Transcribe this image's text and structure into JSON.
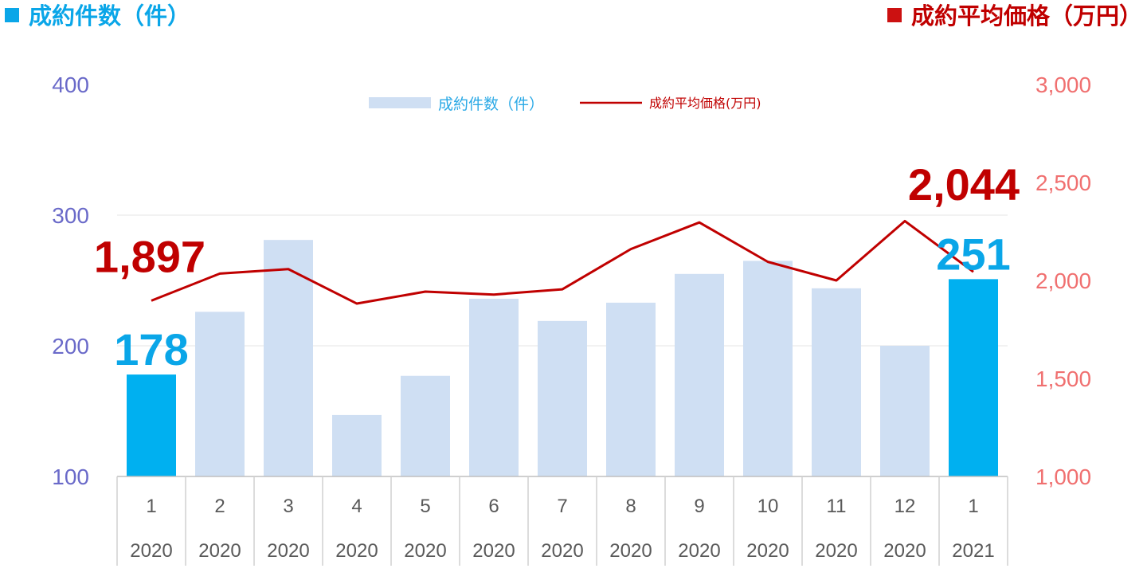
{
  "header": {
    "left_title": "成約件数（件）",
    "right_title": "成約平均価格（万円）",
    "left_color": "#0aa6e8",
    "right_color": "#c00000"
  },
  "chart_data": {
    "type": "bar",
    "combo": "bar+line",
    "categories": [
      "1",
      "2",
      "3",
      "4",
      "5",
      "6",
      "7",
      "8",
      "9",
      "10",
      "11",
      "12",
      "1"
    ],
    "category_years": [
      "2020",
      "2020",
      "2020",
      "2020",
      "2020",
      "2020",
      "2020",
      "2020",
      "2020",
      "2020",
      "2020",
      "2020",
      "2021"
    ],
    "series": [
      {
        "name": "成約件数（件）",
        "type": "bar",
        "axis": "left",
        "values": [
          178,
          226,
          281,
          147,
          177,
          236,
          219,
          233,
          255,
          265,
          244,
          200,
          251
        ],
        "color": "#cfdff3",
        "highlight_color": "#00b0f0",
        "highlight_indices": [
          0,
          12
        ]
      },
      {
        "name": "成約平均価格(万円)",
        "type": "line",
        "axis": "right",
        "values": [
          1897,
          2035,
          2058,
          1882,
          1943,
          1928,
          1955,
          2160,
          2296,
          2095,
          2000,
          2303,
          2044
        ],
        "color": "#c00000"
      }
    ],
    "left_axis": {
      "ylim": [
        100,
        400
      ],
      "ticks": [
        100,
        200,
        300,
        400
      ],
      "tick_labels": [
        "100",
        "200",
        "300",
        "400"
      ],
      "color": "#6a6ac9"
    },
    "right_axis": {
      "ylim": [
        1000,
        3000
      ],
      "ticks": [
        1000,
        1500,
        2000,
        2500,
        3000
      ],
      "tick_labels": [
        "1,000",
        "1,500",
        "2,000",
        "2,500",
        "3,000"
      ],
      "color": "#f07070"
    },
    "annotations": [
      {
        "text": "178",
        "series": 0,
        "index": 0,
        "color": "#0aa6e8"
      },
      {
        "text": "251",
        "series": 0,
        "index": 12,
        "color": "#0aa6e8"
      },
      {
        "text": "1,897",
        "series": 1,
        "index": 0,
        "color": "#c00000"
      },
      {
        "text": "2,044",
        "series": 1,
        "index": 12,
        "color": "#c00000"
      }
    ],
    "legend": {
      "position": "top-center",
      "entries": [
        "成約件数（件）",
        "成約平均価格(万円)"
      ]
    },
    "grid": true
  }
}
